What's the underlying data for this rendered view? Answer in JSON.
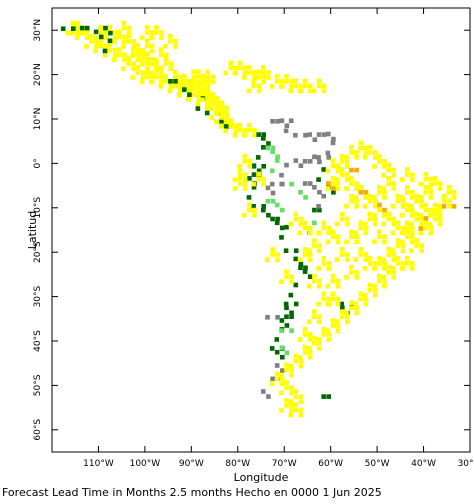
{
  "chart_data": {
    "type": "heatmap",
    "subtype": "categorical-grid-map",
    "xlabel": "Longitude",
    "ylabel": "Latitud",
    "xlim": [
      -120,
      -30
    ],
    "ylim": [
      -65,
      35
    ],
    "x_ticks": [
      -110,
      -100,
      -90,
      -80,
      -70,
      -60,
      -50,
      -40,
      -30
    ],
    "x_tick_labels": [
      "110°W",
      "100°W",
      "90°W",
      "80°W",
      "70°W",
      "60°W",
      "50°W",
      "40°W",
      "30°W"
    ],
    "y_ticks": [
      30,
      20,
      10,
      0,
      -10,
      -20,
      -30,
      -40,
      -50,
      -60
    ],
    "y_tick_labels": [
      "30°N",
      "20°N",
      "10°N",
      "0°",
      "10°S",
      "20°S",
      "30°S",
      "40°S",
      "50°S",
      "60°S"
    ],
    "grid": false,
    "colors": {
      "yellow": "#ffff00",
      "light_yellow": "#ffff66",
      "orange": "#ffaa00",
      "light_green": "#66dd66",
      "dark_green": "#006600",
      "gray": "#808080"
    },
    "regions": [
      {
        "name": "mexico",
        "color": "yellow",
        "points": [
          [
            -116,
            31
          ],
          [
            -115,
            31
          ],
          [
            -114,
            30
          ],
          [
            -112,
            28
          ],
          [
            -110,
            27
          ],
          [
            -108,
            26
          ],
          [
            -106,
            25
          ],
          [
            -104,
            23
          ],
          [
            -102,
            21
          ],
          [
            -100,
            20
          ],
          [
            -98,
            20
          ],
          [
            -96,
            19
          ],
          [
            -94,
            18
          ],
          [
            -92,
            17
          ],
          [
            -90,
            16
          ],
          [
            -88,
            15
          ],
          [
            -86,
            14
          ],
          [
            -104,
            28
          ],
          [
            -102,
            26
          ],
          [
            -100,
            24
          ],
          [
            -98,
            22
          ],
          [
            -106,
            29
          ],
          [
            -108,
            30
          ],
          [
            -96,
            23
          ],
          [
            -110,
            30
          ],
          [
            -100,
            30
          ],
          [
            -95,
            28
          ],
          [
            -105,
            31
          ],
          [
            -98,
            30
          ],
          [
            -103,
            25
          ],
          [
            -101,
            23
          ],
          [
            -97,
            25
          ],
          [
            -100,
            27
          ],
          [
            -94,
            20
          ],
          [
            -92,
            19
          ],
          [
            -90,
            20
          ],
          [
            -88,
            19
          ],
          [
            -88,
            17
          ],
          [
            -90,
            18
          ],
          [
            -89,
            20
          ],
          [
            -87,
            20
          ]
        ]
      },
      {
        "name": "mexico-dark",
        "color": "dark_green",
        "points": [
          [
            -114,
            31
          ],
          [
            -111,
            29
          ],
          [
            -108,
            27
          ],
          [
            -117,
            32
          ],
          [
            -109,
            31
          ],
          [
            -95,
            19
          ],
          [
            -92,
            16
          ],
          [
            -88,
            14
          ],
          [
            -86,
            13
          ],
          [
            -84,
            10
          ],
          [
            -83,
            9
          ]
        ]
      },
      {
        "name": "central-america",
        "color": "yellow",
        "points": [
          [
            -85,
            12
          ],
          [
            -84,
            11
          ],
          [
            -83,
            10
          ],
          [
            -82,
            9
          ],
          [
            -80,
            8
          ],
          [
            -78,
            8
          ],
          [
            -86,
            15
          ],
          [
            -85,
            14
          ],
          [
            -84,
            13
          ],
          [
            -87,
            16
          ]
        ]
      },
      {
        "name": "caribbean",
        "color": "yellow",
        "points": [
          [
            -82,
            22
          ],
          [
            -80,
            22
          ],
          [
            -78,
            21
          ],
          [
            -76,
            20
          ],
          [
            -72,
            19
          ],
          [
            -70,
            19
          ],
          [
            -68,
            18
          ],
          [
            -66,
            18
          ],
          [
            -77,
            18
          ],
          [
            -75,
            21
          ],
          [
            -63,
            18
          ]
        ]
      },
      {
        "name": "andes-green",
        "color": "dark_green",
        "points": [
          [
            -76,
            7
          ],
          [
            -75,
            5
          ],
          [
            -75,
            3
          ],
          [
            -76,
            1
          ],
          [
            -77,
            0
          ],
          [
            -77,
            -2
          ],
          [
            -78,
            -4
          ],
          [
            -77,
            -6
          ],
          [
            -76,
            -8
          ],
          [
            -75,
            -10
          ],
          [
            -73,
            -12
          ],
          [
            -72,
            -14
          ],
          [
            -70,
            -15
          ],
          [
            -69,
            -18
          ],
          [
            -68,
            -21
          ],
          [
            -67,
            -23
          ],
          [
            -66,
            -25
          ],
          [
            -68,
            -28
          ],
          [
            -69,
            -30
          ],
          [
            -70,
            -32
          ],
          [
            -70,
            -34
          ],
          [
            -71,
            -36
          ],
          [
            -71,
            -38
          ],
          [
            -72,
            -40
          ],
          [
            -72,
            -42
          ],
          [
            -64,
            -10
          ],
          [
            -61,
            -6
          ],
          [
            -62,
            -2
          ],
          [
            -57,
            -30
          ],
          [
            -58,
            -32
          ],
          [
            -62,
            -52
          ]
        ]
      },
      {
        "name": "andes-light-green",
        "color": "light_green",
        "points": [
          [
            -74,
            4
          ],
          [
            -73,
            2
          ],
          [
            -72,
            0
          ],
          [
            -70,
            -3
          ],
          [
            -67,
            -6
          ],
          [
            -74,
            -8
          ],
          [
            -72,
            -10
          ],
          [
            -64,
            -14
          ],
          [
            -70,
            -36
          ],
          [
            -71,
            -41
          ]
        ]
      },
      {
        "name": "amazon-gray",
        "color": "gray",
        "points": [
          [
            -73,
            10
          ],
          [
            -71,
            9
          ],
          [
            -69,
            9
          ],
          [
            -67,
            8
          ],
          [
            -65,
            7
          ],
          [
            -63,
            7
          ],
          [
            -61,
            6
          ],
          [
            -60,
            4
          ],
          [
            -62,
            3
          ],
          [
            -64,
            2
          ],
          [
            -66,
            1
          ],
          [
            -68,
            0
          ],
          [
            -70,
            -1
          ],
          [
            -72,
            -3
          ],
          [
            -74,
            -5
          ],
          [
            -66,
            -4
          ],
          [
            -64,
            -6
          ],
          [
            -62,
            -8
          ],
          [
            -73,
            -33
          ],
          [
            -72,
            -45
          ],
          [
            -73,
            -48
          ],
          [
            -75,
            -52
          ]
        ]
      },
      {
        "name": "south-america-yellow",
        "color": "yellow",
        "points": [
          [
            -60,
            0
          ],
          [
            -58,
            -2
          ],
          [
            -56,
            -4
          ],
          [
            -54,
            -6
          ],
          [
            -52,
            -8
          ],
          [
            -50,
            -10
          ],
          [
            -48,
            -12
          ],
          [
            -46,
            -14
          ],
          [
            -44,
            -16
          ],
          [
            -42,
            -18
          ],
          [
            -40,
            -14
          ],
          [
            -38,
            -10
          ],
          [
            -36,
            -8
          ],
          [
            -35,
            -6
          ],
          [
            -38,
            -4
          ],
          [
            -40,
            -3
          ],
          [
            -44,
            -2
          ],
          [
            -48,
            -1
          ],
          [
            -50,
            1
          ],
          [
            -52,
            3
          ],
          [
            -54,
            4
          ],
          [
            -56,
            3
          ],
          [
            -58,
            1
          ],
          [
            -60,
            -4
          ],
          [
            -56,
            -8
          ],
          [
            -52,
            -12
          ],
          [
            -50,
            -16
          ],
          [
            -48,
            -20
          ],
          [
            -46,
            -22
          ],
          [
            -44,
            -22
          ],
          [
            -48,
            -24
          ],
          [
            -50,
            -26
          ],
          [
            -52,
            -28
          ],
          [
            -54,
            -30
          ],
          [
            -56,
            -32
          ],
          [
            -58,
            -34
          ],
          [
            -60,
            -36
          ],
          [
            -62,
            -38
          ],
          [
            -64,
            -40
          ],
          [
            -66,
            -42
          ],
          [
            -68,
            -44
          ],
          [
            -70,
            -46
          ],
          [
            -72,
            -48
          ],
          [
            -70,
            -50
          ],
          [
            -68,
            -52
          ],
          [
            -70,
            -54
          ],
          [
            -68,
            -55
          ],
          [
            -66,
            -38
          ],
          [
            -64,
            -34
          ],
          [
            -62,
            -30
          ],
          [
            -60,
            -26
          ],
          [
            -62,
            -22
          ],
          [
            -64,
            -18
          ],
          [
            -60,
            -16
          ],
          [
            -58,
            -12
          ],
          [
            -56,
            -16
          ],
          [
            -54,
            -20
          ],
          [
            -52,
            -22
          ],
          [
            -50,
            -22
          ],
          [
            -46,
            -8
          ],
          [
            -44,
            -6
          ],
          [
            -42,
            -8
          ],
          [
            -40,
            -6
          ],
          [
            -38,
            -12
          ],
          [
            -42,
            -12
          ],
          [
            -44,
            -10
          ],
          [
            -46,
            -18
          ],
          [
            -66,
            -14
          ],
          [
            -68,
            -12
          ],
          [
            -62,
            -14
          ],
          [
            -58,
            -20
          ],
          [
            -56,
            -24
          ],
          [
            -60,
            -30
          ],
          [
            -64,
            -26
          ],
          [
            -66,
            -20
          ],
          [
            -54,
            -14
          ],
          [
            -50,
            -6
          ],
          [
            -48,
            -4
          ],
          [
            -44,
            -14
          ],
          [
            -40,
            -10
          ],
          [
            -76,
            -3
          ],
          [
            -78,
            -10
          ],
          [
            -80,
            -4
          ],
          [
            -80,
            -2
          ],
          [
            -79,
            1
          ],
          [
            -73,
            -20
          ],
          [
            -70,
            -25
          ]
        ]
      },
      {
        "name": "orange-spots",
        "color": "orange",
        "points": [
          [
            -54,
            -6
          ],
          [
            -50,
            -10
          ],
          [
            -40,
            -13
          ],
          [
            -35,
            -8
          ],
          [
            -61,
            -4
          ],
          [
            -56,
            -1
          ]
        ]
      }
    ]
  },
  "caption": "Forecast Lead Time in Months 2.5 months Hecho en 0000 1 Jun 2025"
}
